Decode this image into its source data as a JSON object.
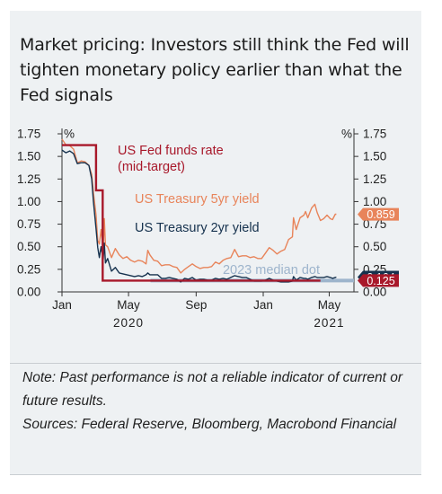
{
  "title": "Market pricing: Investors still think the Fed will tighten monetary policy earlier than what the Fed signals",
  "note": {
    "disclaimer": "Note: Past performance is not a reliable indicator of current or future results.",
    "sources": "Sources: Federal Reserve, Bloomberg, Macrobond Financial"
  },
  "colors": {
    "fed": "#a8182a",
    "t5": "#e8845a",
    "t2": "#16324e",
    "median": "#9db4cc",
    "axis": "#333333",
    "background": "#eef1f3"
  },
  "chart_data": {
    "type": "line",
    "title": "Market pricing: Investors still think the Fed will tighten monetary policy earlier than what the Fed signals",
    "y_left_label": "%",
    "y_right_label": "%",
    "ylim": [
      0,
      1.75
    ],
    "yticks": [
      "0.00",
      "0.25",
      "0.50",
      "0.75",
      "1.00",
      "1.25",
      "1.50",
      "1.75"
    ],
    "x_ticks": [
      {
        "date": "2020-01-01",
        "label": "Jan"
      },
      {
        "date": "2020-05-01",
        "label": "May"
      },
      {
        "date": "2020-09-01",
        "label": "Sep"
      },
      {
        "date": "2021-01-01",
        "label": "Jan"
      },
      {
        "date": "2021-05-01",
        "label": "May"
      }
    ],
    "x_years": [
      {
        "date": "2020-05-01",
        "label": "2020"
      },
      {
        "date": "2021-05-01",
        "label": "2021"
      }
    ],
    "xlim": [
      "2020-01-01",
      "2021-06-15"
    ],
    "series": [
      {
        "name": "US Fed funds rate (mid-target)",
        "label_lines": [
          "US Fed funds rate",
          "(mid-target)"
        ],
        "color": "#a8182a",
        "step": true,
        "end_value": "0.125",
        "points": [
          [
            "2020-01-01",
            1.625
          ],
          [
            "2020-03-03",
            1.625
          ],
          [
            "2020-03-03",
            1.125
          ],
          [
            "2020-03-15",
            1.125
          ],
          [
            "2020-03-15",
            0.125
          ],
          [
            "2021-04-15",
            0.125
          ]
        ]
      },
      {
        "name": "US Treasury 5yr yield",
        "color": "#e8845a",
        "end_value": "0.859",
        "points": [
          [
            "2020-01-01",
            1.69
          ],
          [
            "2020-01-08",
            1.63
          ],
          [
            "2020-01-15",
            1.62
          ],
          [
            "2020-01-22",
            1.58
          ],
          [
            "2020-01-29",
            1.43
          ],
          [
            "2020-02-05",
            1.45
          ],
          [
            "2020-02-12",
            1.44
          ],
          [
            "2020-02-19",
            1.4
          ],
          [
            "2020-02-24",
            1.3
          ],
          [
            "2020-02-27",
            1.11
          ],
          [
            "2020-03-03",
            0.85
          ],
          [
            "2020-03-06",
            0.57
          ],
          [
            "2020-03-09",
            0.53
          ],
          [
            "2020-03-12",
            0.69
          ],
          [
            "2020-03-16",
            0.47
          ],
          [
            "2020-03-18",
            0.81
          ],
          [
            "2020-03-20",
            0.52
          ],
          [
            "2020-03-24",
            0.5
          ],
          [
            "2020-03-31",
            0.38
          ],
          [
            "2020-04-07",
            0.48
          ],
          [
            "2020-04-14",
            0.41
          ],
          [
            "2020-04-21",
            0.37
          ],
          [
            "2020-04-28",
            0.39
          ],
          [
            "2020-05-05",
            0.35
          ],
          [
            "2020-05-12",
            0.33
          ],
          [
            "2020-05-19",
            0.35
          ],
          [
            "2020-05-26",
            0.34
          ],
          [
            "2020-06-02",
            0.31
          ],
          [
            "2020-06-05",
            0.46
          ],
          [
            "2020-06-09",
            0.41
          ],
          [
            "2020-06-16",
            0.35
          ],
          [
            "2020-06-23",
            0.34
          ],
          [
            "2020-06-30",
            0.29
          ],
          [
            "2020-07-07",
            0.3
          ],
          [
            "2020-07-14",
            0.3
          ],
          [
            "2020-07-21",
            0.28
          ],
          [
            "2020-07-28",
            0.27
          ],
          [
            "2020-08-04",
            0.21
          ],
          [
            "2020-08-11",
            0.25
          ],
          [
            "2020-08-18",
            0.28
          ],
          [
            "2020-08-25",
            0.31
          ],
          [
            "2020-09-01",
            0.28
          ],
          [
            "2020-09-08",
            0.26
          ],
          [
            "2020-09-15",
            0.27
          ],
          [
            "2020-09-22",
            0.27
          ],
          [
            "2020-09-29",
            0.28
          ],
          [
            "2020-10-06",
            0.33
          ],
          [
            "2020-10-13",
            0.31
          ],
          [
            "2020-10-20",
            0.35
          ],
          [
            "2020-10-27",
            0.37
          ],
          [
            "2020-11-03",
            0.38
          ],
          [
            "2020-11-10",
            0.47
          ],
          [
            "2020-11-17",
            0.39
          ],
          [
            "2020-11-24",
            0.4
          ],
          [
            "2020-12-01",
            0.4
          ],
          [
            "2020-12-08",
            0.38
          ],
          [
            "2020-12-15",
            0.39
          ],
          [
            "2020-12-22",
            0.37
          ],
          [
            "2020-12-29",
            0.37
          ],
          [
            "2021-01-05",
            0.43
          ],
          [
            "2021-01-12",
            0.49
          ],
          [
            "2021-01-19",
            0.46
          ],
          [
            "2021-01-26",
            0.42
          ],
          [
            "2021-02-02",
            0.45
          ],
          [
            "2021-02-09",
            0.47
          ],
          [
            "2021-02-16",
            0.58
          ],
          [
            "2021-02-23",
            0.61
          ],
          [
            "2021-02-25",
            0.82
          ],
          [
            "2021-03-02",
            0.69
          ],
          [
            "2021-03-09",
            0.82
          ],
          [
            "2021-03-16",
            0.85
          ],
          [
            "2021-03-19",
            0.89
          ],
          [
            "2021-03-23",
            0.82
          ],
          [
            "2021-03-30",
            0.93
          ],
          [
            "2021-04-05",
            0.97
          ],
          [
            "2021-04-09",
            0.88
          ],
          [
            "2021-04-15",
            0.79
          ],
          [
            "2021-04-21",
            0.81
          ],
          [
            "2021-04-27",
            0.85
          ],
          [
            "2021-05-03",
            0.81
          ],
          [
            "2021-05-07",
            0.8
          ],
          [
            "2021-05-12",
            0.86
          ],
          [
            "2021-05-14",
            0.86
          ]
        ]
      },
      {
        "name": "US Treasury 2yr yield",
        "color": "#16324e",
        "end_value": "0.164",
        "points": [
          [
            "2020-01-01",
            1.57
          ],
          [
            "2020-01-08",
            1.54
          ],
          [
            "2020-01-15",
            1.56
          ],
          [
            "2020-01-22",
            1.53
          ],
          [
            "2020-01-29",
            1.42
          ],
          [
            "2020-02-05",
            1.43
          ],
          [
            "2020-02-12",
            1.43
          ],
          [
            "2020-02-19",
            1.4
          ],
          [
            "2020-02-24",
            1.25
          ],
          [
            "2020-02-27",
            1.01
          ],
          [
            "2020-03-03",
            0.7
          ],
          [
            "2020-03-06",
            0.49
          ],
          [
            "2020-03-09",
            0.38
          ],
          [
            "2020-03-12",
            0.5
          ],
          [
            "2020-03-16",
            0.36
          ],
          [
            "2020-03-18",
            0.54
          ],
          [
            "2020-03-20",
            0.32
          ],
          [
            "2020-03-24",
            0.37
          ],
          [
            "2020-03-31",
            0.23
          ],
          [
            "2020-04-07",
            0.27
          ],
          [
            "2020-04-14",
            0.21
          ],
          [
            "2020-04-21",
            0.2
          ],
          [
            "2020-04-28",
            0.19
          ],
          [
            "2020-05-05",
            0.18
          ],
          [
            "2020-05-12",
            0.17
          ],
          [
            "2020-05-19",
            0.18
          ],
          [
            "2020-05-26",
            0.17
          ],
          [
            "2020-06-02",
            0.19
          ],
          [
            "2020-06-05",
            0.21
          ],
          [
            "2020-06-09",
            0.19
          ],
          [
            "2020-06-16",
            0.19
          ],
          [
            "2020-06-23",
            0.19
          ],
          [
            "2020-06-30",
            0.15
          ],
          [
            "2020-07-07",
            0.15
          ],
          [
            "2020-07-14",
            0.16
          ],
          [
            "2020-07-21",
            0.15
          ],
          [
            "2020-07-28",
            0.14
          ],
          [
            "2020-08-04",
            0.11
          ],
          [
            "2020-08-11",
            0.15
          ],
          [
            "2020-08-18",
            0.14
          ],
          [
            "2020-08-25",
            0.16
          ],
          [
            "2020-09-01",
            0.13
          ],
          [
            "2020-09-08",
            0.14
          ],
          [
            "2020-09-15",
            0.14
          ],
          [
            "2020-09-22",
            0.13
          ],
          [
            "2020-09-29",
            0.13
          ],
          [
            "2020-10-06",
            0.15
          ],
          [
            "2020-10-13",
            0.14
          ],
          [
            "2020-10-20",
            0.15
          ],
          [
            "2020-10-27",
            0.14
          ],
          [
            "2020-11-03",
            0.16
          ],
          [
            "2020-11-10",
            0.18
          ],
          [
            "2020-11-17",
            0.17
          ],
          [
            "2020-11-24",
            0.16
          ],
          [
            "2020-12-01",
            0.16
          ],
          [
            "2020-12-08",
            0.14
          ],
          [
            "2020-12-15",
            0.12
          ],
          [
            "2020-12-22",
            0.12
          ],
          [
            "2020-12-29",
            0.12
          ],
          [
            "2021-01-05",
            0.13
          ],
          [
            "2021-01-12",
            0.15
          ],
          [
            "2021-01-19",
            0.13
          ],
          [
            "2021-01-26",
            0.12
          ],
          [
            "2021-02-02",
            0.11
          ],
          [
            "2021-02-09",
            0.11
          ],
          [
            "2021-02-16",
            0.11
          ],
          [
            "2021-02-23",
            0.12
          ],
          [
            "2021-02-25",
            0.17
          ],
          [
            "2021-03-02",
            0.13
          ],
          [
            "2021-03-09",
            0.16
          ],
          [
            "2021-03-16",
            0.15
          ],
          [
            "2021-03-19",
            0.15
          ],
          [
            "2021-03-23",
            0.14
          ],
          [
            "2021-03-30",
            0.16
          ],
          [
            "2021-04-05",
            0.17
          ],
          [
            "2021-04-09",
            0.16
          ],
          [
            "2021-04-15",
            0.16
          ],
          [
            "2021-04-21",
            0.16
          ],
          [
            "2021-04-27",
            0.17
          ],
          [
            "2021-05-03",
            0.16
          ],
          [
            "2021-05-07",
            0.15
          ],
          [
            "2021-05-12",
            0.16
          ],
          [
            "2021-05-14",
            0.164
          ]
        ]
      },
      {
        "name": "2023 median dot",
        "color": "#9db4cc",
        "points": [
          [
            "2020-06-10",
            0.125
          ],
          [
            "2021-06-15",
            0.125
          ]
        ]
      }
    ],
    "legend": "inline labels",
    "grid": false
  }
}
